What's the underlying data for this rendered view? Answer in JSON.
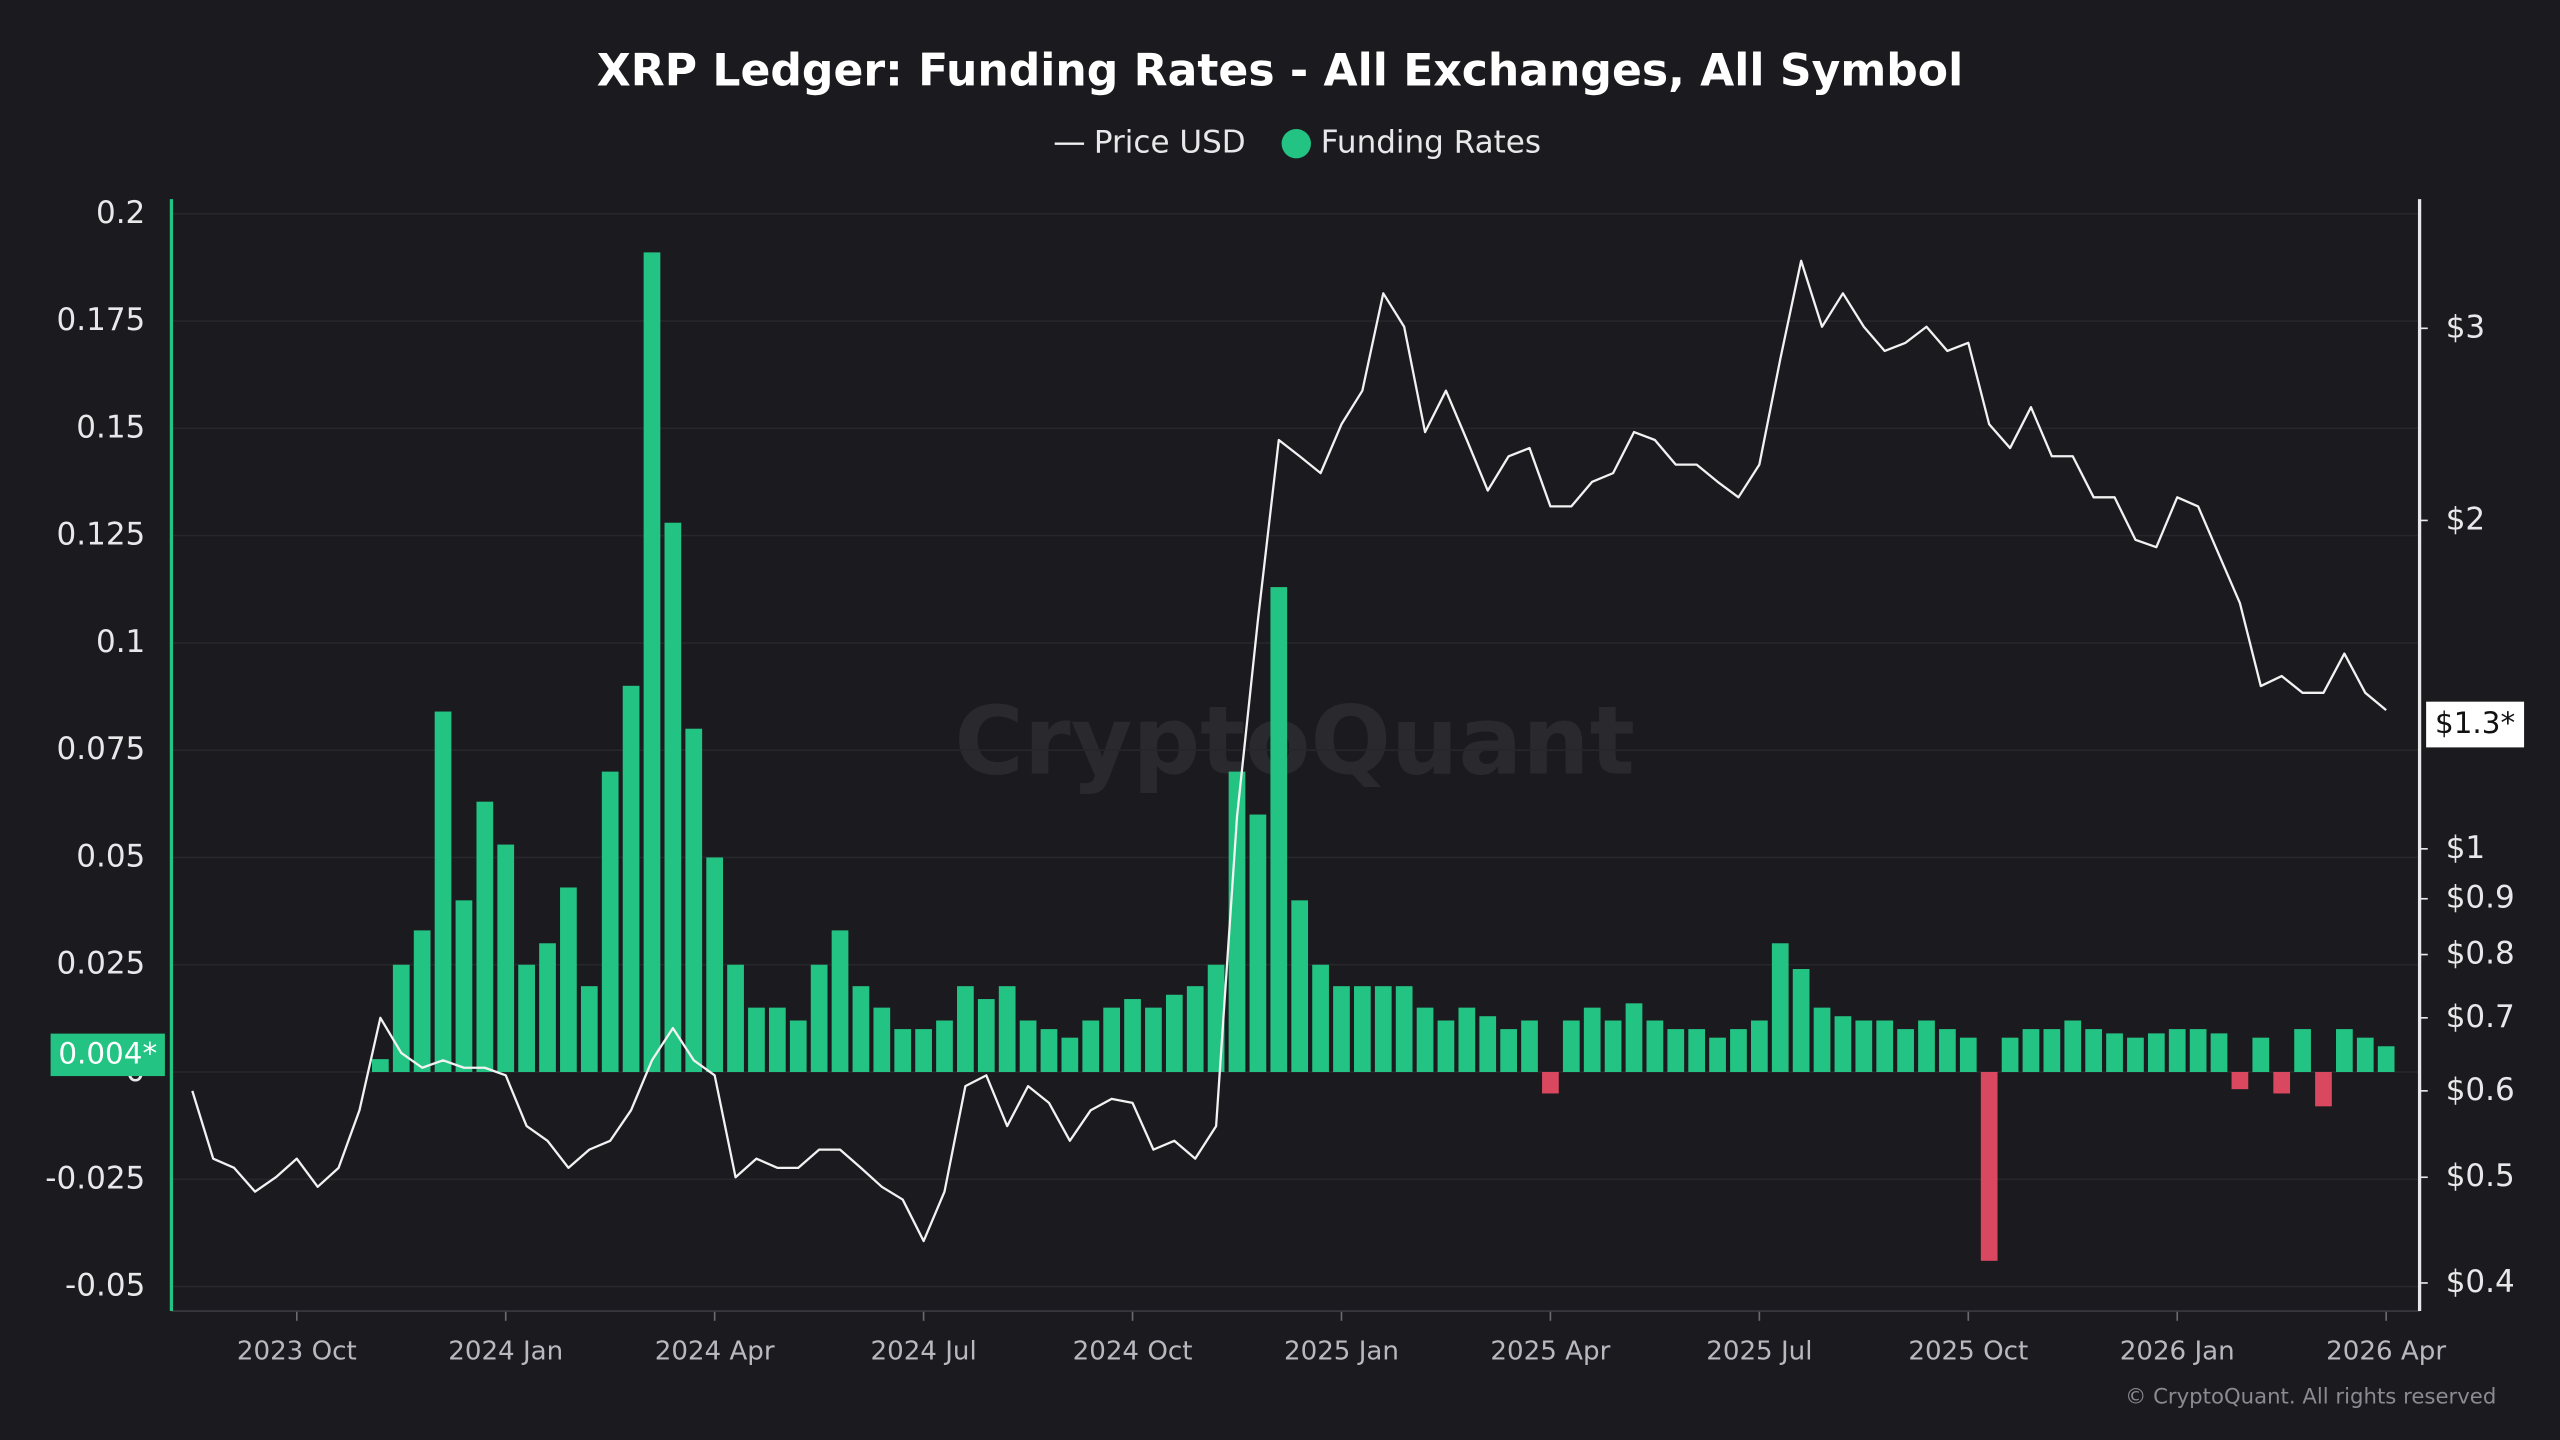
{
  "chart_data": {
    "type": "combo",
    "title": "XRP Ledger: Funding Rates - All Exchanges, All Symbol",
    "watermark": "CryptoQuant",
    "footer": "© CryptoQuant. All rights reserved",
    "legend": "top",
    "grid": true,
    "x": [
      2023.625,
      2023.65,
      2023.675,
      2023.7,
      2023.725,
      2023.75,
      2023.775,
      2023.8,
      2023.825,
      2023.85,
      2023.875,
      2023.9,
      2023.925,
      2023.95,
      2023.975,
      2024,
      2024.025,
      2024.05,
      2024.075,
      2024.1,
      2024.125,
      2024.15,
      2024.175,
      2024.2,
      2024.225,
      2024.25,
      2024.275,
      2024.3,
      2024.325,
      2024.35,
      2024.375,
      2024.4,
      2024.425,
      2024.45,
      2024.475,
      2024.5,
      2024.525,
      2024.55,
      2024.575,
      2024.6,
      2024.625,
      2024.65,
      2024.675,
      2024.7,
      2024.725,
      2024.75,
      2024.775,
      2024.8,
      2024.825,
      2024.85,
      2024.875,
      2024.9,
      2024.925,
      2024.95,
      2024.975,
      2025,
      2025.025,
      2025.05,
      2025.075,
      2025.1,
      2025.125,
      2025.15,
      2025.175,
      2025.2,
      2025.225,
      2025.25,
      2025.275,
      2025.3,
      2025.325,
      2025.35,
      2025.375,
      2025.4,
      2025.425,
      2025.45,
      2025.475,
      2025.5,
      2025.525,
      2025.55,
      2025.575,
      2025.6,
      2025.625,
      2025.65,
      2025.675,
      2025.7,
      2025.725,
      2025.75,
      2025.775,
      2025.8,
      2025.825,
      2025.85,
      2025.875,
      2025.9,
      2025.925,
      2025.95,
      2025.975,
      2026,
      2026.025,
      2026.05,
      2026.075,
      2026.1,
      2026.125,
      2026.15,
      2026.175,
      2026.2,
      2026.225,
      2026.25
    ],
    "xlim": [
      2023.6,
      2026.29
    ],
    "xticks": [
      {
        "value": 2023.75,
        "label": "2023 Oct"
      },
      {
        "value": 2024.0,
        "label": "2024 Jan"
      },
      {
        "value": 2024.25,
        "label": "2024 Apr"
      },
      {
        "value": 2024.5,
        "label": "2024 Jul"
      },
      {
        "value": 2024.75,
        "label": "2024 Oct"
      },
      {
        "value": 2025.0,
        "label": "2025 Jan"
      },
      {
        "value": 2025.25,
        "label": "2025 Apr"
      },
      {
        "value": 2025.5,
        "label": "2025 Jul"
      },
      {
        "value": 2025.75,
        "label": "2025 Oct"
      },
      {
        "value": 2026.0,
        "label": "2026 Jan"
      },
      {
        "value": 2026.25,
        "label": "2026 Apr"
      }
    ],
    "ylim": [
      -0.0557,
      0.2034
    ],
    "yticks": [
      -0.05,
      -0.025,
      0,
      0.025,
      0.05,
      0.075,
      0.1,
      0.125,
      0.15,
      0.175,
      0.2
    ],
    "y2lim": [
      0.377,
      3.94
    ],
    "y2scale": "log",
    "y2ticks": [
      {
        "value": 0.4,
        "label": "$0.4"
      },
      {
        "value": 0.5,
        "label": "$0.5"
      },
      {
        "value": 0.6,
        "label": "$0.6"
      },
      {
        "value": 0.7,
        "label": "$0.7"
      },
      {
        "value": 0.8,
        "label": "$0.8"
      },
      {
        "value": 0.9,
        "label": "$0.9"
      },
      {
        "value": 1,
        "label": "$1"
      },
      {
        "value": 2,
        "label": "$2"
      },
      {
        "value": 3,
        "label": "$3"
      }
    ],
    "series": [
      {
        "name": "Price USD",
        "type": "line",
        "axis": "y2",
        "color": "#f2f2f2",
        "values": [
          0.6,
          0.52,
          0.51,
          0.485,
          0.5,
          0.52,
          0.49,
          0.51,
          0.576,
          0.7,
          0.65,
          0.63,
          0.64,
          0.63,
          0.63,
          0.62,
          0.557,
          0.54,
          0.51,
          0.53,
          0.54,
          0.576,
          0.64,
          0.685,
          0.64,
          0.62,
          0.5,
          0.52,
          0.51,
          0.51,
          0.53,
          0.53,
          0.51,
          0.49,
          0.477,
          0.437,
          0.485,
          0.606,
          0.62,
          0.557,
          0.606,
          0.585,
          0.54,
          0.576,
          0.59,
          0.585,
          0.53,
          0.54,
          0.52,
          0.557,
          1.07,
          1.62,
          2.37,
          2.29,
          2.21,
          2.45,
          2.63,
          3.23,
          3.01,
          2.41,
          2.63,
          2.37,
          2.13,
          2.29,
          2.33,
          2.06,
          2.06,
          2.17,
          2.21,
          2.41,
          2.37,
          2.25,
          2.25,
          2.17,
          2.1,
          2.25,
          2.81,
          3.46,
          3.01,
          3.23,
          3.01,
          2.86,
          2.91,
          3.01,
          2.86,
          2.91,
          2.45,
          2.33,
          2.54,
          2.29,
          2.29,
          2.1,
          2.1,
          1.92,
          1.89,
          2.1,
          2.06,
          1.86,
          1.68,
          1.41,
          1.44,
          1.39,
          1.39,
          1.51,
          1.39,
          1.34
        ]
      },
      {
        "name": "Funding Rates",
        "type": "bar",
        "color": "#23c483",
        "negative_color": "#d9485f",
        "values": [
          0,
          0,
          0,
          0,
          0,
          0,
          0,
          0,
          0,
          0.003,
          0.025,
          0.033,
          0.084,
          0.04,
          0.063,
          0.053,
          0.025,
          0.03,
          0.043,
          0.02,
          0.07,
          0.09,
          0.191,
          0.128,
          0.08,
          0.05,
          0.025,
          0.015,
          0.015,
          0.012,
          0.025,
          0.033,
          0.02,
          0.015,
          0.01,
          0.01,
          0.012,
          0.02,
          0.017,
          0.02,
          0.012,
          0.01,
          0.008,
          0.012,
          0.015,
          0.017,
          0.015,
          0.018,
          0.02,
          0.025,
          0.07,
          0.06,
          0.113,
          0.04,
          0.025,
          0.02,
          0.02,
          0.02,
          0.02,
          0.015,
          0.012,
          0.015,
          0.013,
          0.01,
          0.012,
          -0.005,
          0.012,
          0.015,
          0.012,
          0.016,
          0.012,
          0.01,
          0.01,
          0.008,
          0.01,
          0.012,
          0.03,
          0.024,
          0.015,
          0.013,
          0.012,
          0.012,
          0.01,
          0.012,
          0.01,
          0.008,
          -0.044,
          0.008,
          0.01,
          0.01,
          0.012,
          0.01,
          0.009,
          0.008,
          0.009,
          0.01,
          0.01,
          0.009,
          -0.004,
          0.008,
          -0.005,
          0.01,
          -0.008,
          0.01,
          0.008,
          0.006
        ]
      }
    ],
    "annotations": {
      "last_funding": {
        "value": 0.004,
        "label": "0.004*"
      },
      "last_price": {
        "value": 1.3,
        "label": "$1.3*"
      }
    }
  }
}
